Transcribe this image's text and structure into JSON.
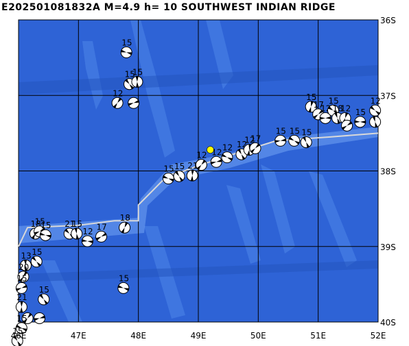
{
  "title": "E202501081832A  M=4.9  h= 10  SOUTHWEST INDIAN RIDGE",
  "map": {
    "lon_range": [
      46,
      52
    ],
    "lat_range": [
      -40,
      -36
    ],
    "lon_ticks": [
      "46E",
      "47E",
      "48E",
      "49E",
      "50E",
      "51E",
      "52E"
    ],
    "lat_ticks": [
      "36S",
      "37S",
      "38S",
      "39S",
      "40S"
    ],
    "colors": {
      "ocean": "#2e63d6",
      "shallow": "#4b7fe6",
      "grid": "#000000",
      "ridge": "#d9d9d9",
      "epicenter": "#ffff00"
    },
    "epicenter": {
      "lon": 49.2,
      "lat": -37.72
    },
    "ridge_axis": [
      [
        46.0,
        -39.0
      ],
      [
        46.15,
        -38.75
      ],
      [
        47.0,
        -38.72
      ],
      [
        47.6,
        -38.66
      ],
      [
        48.0,
        -38.66
      ],
      [
        48.0,
        -38.45
      ],
      [
        48.5,
        -38.05
      ],
      [
        48.7,
        -38.02
      ],
      [
        49.0,
        -37.93
      ],
      [
        49.5,
        -37.8
      ],
      [
        49.9,
        -37.7
      ],
      [
        50.3,
        -37.6
      ],
      [
        51.2,
        -37.55
      ],
      [
        52.0,
        -37.5
      ]
    ],
    "mechanisms": [
      {
        "lon": 47.8,
        "lat": -36.43,
        "label": "15"
      },
      {
        "lon": 47.85,
        "lat": -36.85,
        "label": "15"
      },
      {
        "lon": 47.98,
        "lat": -36.82,
        "label": "15"
      },
      {
        "lon": 47.65,
        "lat": -37.1,
        "label": "12"
      },
      {
        "lon": 47.92,
        "lat": -37.1,
        "label": ""
      },
      {
        "lon": 48.5,
        "lat": -38.1,
        "label": "15"
      },
      {
        "lon": 48.68,
        "lat": -38.07,
        "label": "15"
      },
      {
        "lon": 48.9,
        "lat": -38.06,
        "label": "21"
      },
      {
        "lon": 49.05,
        "lat": -37.92,
        "label": "12"
      },
      {
        "lon": 49.3,
        "lat": -37.88,
        "label": "12"
      },
      {
        "lon": 49.48,
        "lat": -37.82,
        "label": "12"
      },
      {
        "lon": 49.72,
        "lat": -37.78,
        "label": "12"
      },
      {
        "lon": 49.85,
        "lat": -37.72,
        "label": "12"
      },
      {
        "lon": 49.95,
        "lat": -37.7,
        "label": "17"
      },
      {
        "lon": 50.37,
        "lat": -37.6,
        "label": "15"
      },
      {
        "lon": 50.6,
        "lat": -37.6,
        "label": "15"
      },
      {
        "lon": 50.8,
        "lat": -37.62,
        "label": "15"
      },
      {
        "lon": 50.88,
        "lat": -37.15,
        "label": "15"
      },
      {
        "lon": 51.0,
        "lat": -37.25,
        "label": "17"
      },
      {
        "lon": 51.12,
        "lat": -37.3,
        "label": "12"
      },
      {
        "lon": 51.25,
        "lat": -37.2,
        "label": "15"
      },
      {
        "lon": 51.32,
        "lat": -37.3,
        "label": "18"
      },
      {
        "lon": 51.45,
        "lat": -37.3,
        "label": "12"
      },
      {
        "lon": 51.48,
        "lat": -37.4,
        "label": ""
      },
      {
        "lon": 51.7,
        "lat": -37.35,
        "label": "15"
      },
      {
        "lon": 51.95,
        "lat": -37.2,
        "label": "12"
      },
      {
        "lon": 51.95,
        "lat": -37.35,
        "label": ""
      },
      {
        "lon": 47.77,
        "lat": -38.75,
        "label": "18"
      },
      {
        "lon": 47.38,
        "lat": -38.87,
        "label": "17"
      },
      {
        "lon": 47.15,
        "lat": -38.93,
        "label": "12"
      },
      {
        "lon": 46.85,
        "lat": -38.83,
        "label": "21"
      },
      {
        "lon": 46.97,
        "lat": -38.83,
        "label": "15"
      },
      {
        "lon": 46.28,
        "lat": -38.83,
        "label": "18"
      },
      {
        "lon": 46.35,
        "lat": -38.8,
        "label": "15"
      },
      {
        "lon": 46.45,
        "lat": -38.85,
        "label": "15"
      },
      {
        "lon": 46.3,
        "lat": -39.2,
        "label": "15"
      },
      {
        "lon": 46.12,
        "lat": -39.25,
        "label": "13"
      },
      {
        "lon": 46.08,
        "lat": -39.4,
        "label": "20"
      },
      {
        "lon": 46.05,
        "lat": -39.55,
        "label": "15"
      },
      {
        "lon": 47.75,
        "lat": -39.55,
        "label": "15"
      },
      {
        "lon": 46.42,
        "lat": -39.7,
        "label": "15"
      },
      {
        "lon": 46.05,
        "lat": -39.8,
        "label": "21"
      },
      {
        "lon": 46.15,
        "lat": -39.95,
        "label": ""
      },
      {
        "lon": 46.35,
        "lat": -39.95,
        "label": ""
      },
      {
        "lon": 46.05,
        "lat": -40.08,
        "label": "15"
      },
      {
        "lon": 45.98,
        "lat": -40.25,
        "label": "15"
      }
    ]
  }
}
